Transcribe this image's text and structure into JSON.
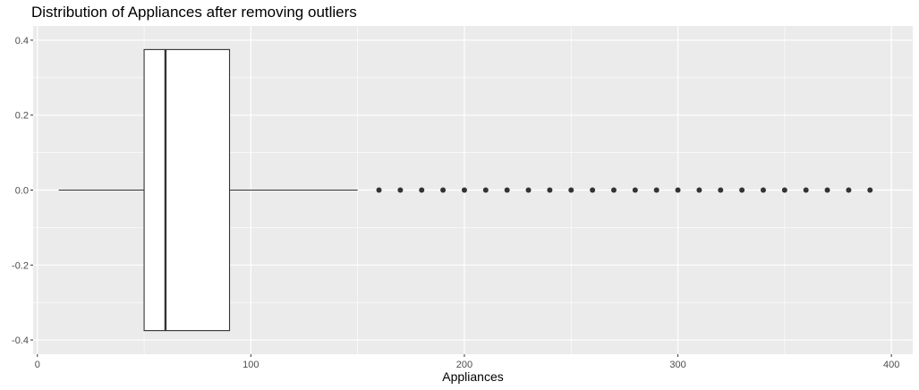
{
  "chart_data": {
    "type": "boxplot",
    "title": "Distribution of Appliances after removing outliers",
    "xlabel": "Appliances",
    "ylabel": "",
    "xlim": [
      -2,
      410
    ],
    "ylim": [
      -0.4,
      0.4
    ],
    "x_ticks": [
      0,
      100,
      200,
      300,
      400
    ],
    "y_ticks": [
      -0.4,
      -0.2,
      0.0,
      0.2,
      0.4
    ],
    "y_tick_labels": [
      "-0.4",
      "-0.2",
      "0.0",
      "0.2",
      "0.4"
    ],
    "box": {
      "whisker_low": 10,
      "q1": 50,
      "median": 60,
      "q3": 90,
      "whisker_high": 150,
      "y_center": 0.0,
      "half_width": 0.375
    },
    "outliers": [
      160,
      170,
      180,
      190,
      200,
      210,
      220,
      230,
      240,
      250,
      260,
      270,
      280,
      290,
      300,
      310,
      320,
      330,
      340,
      350,
      360,
      370,
      380,
      390
    ],
    "grid": true,
    "colors": {
      "panel_background": "#ebebeb",
      "grid_major": "#ffffff",
      "box_fill": "#ffffff",
      "box_line": "#333333",
      "outlier": "#333333"
    }
  }
}
